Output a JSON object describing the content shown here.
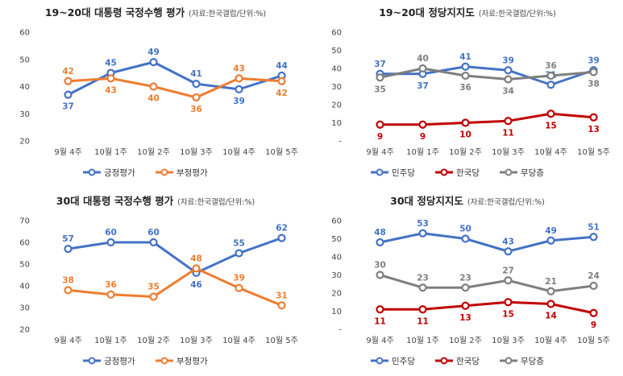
{
  "chart_data": [
    {
      "type": "line",
      "title": "19~20대 대통령 국정수행 평가",
      "note": "(자료:한국갤럽/단위:%)",
      "categories": [
        "9월 4주",
        "10월 1주",
        "10월 2주",
        "10월 3주",
        "10월 4주",
        "10월 5주"
      ],
      "yticks": [
        "20",
        "30",
        "40",
        "50",
        "60"
      ],
      "ylim": [
        20,
        60
      ],
      "series": [
        {
          "name": "긍정평가",
          "color": "#4472C4",
          "values": [
            37,
            45,
            49,
            41,
            39,
            44
          ],
          "label_pos": [
            "below",
            "above",
            "above",
            "above",
            "below",
            "above"
          ]
        },
        {
          "name": "부정평가",
          "color": "#ED7D31",
          "values": [
            42,
            43,
            40,
            36,
            43,
            42
          ],
          "label_pos": [
            "above",
            "below",
            "below",
            "below",
            "above",
            "below"
          ]
        }
      ],
      "legend_position": "bottom"
    },
    {
      "type": "line",
      "title": "19~20대 정당지지도",
      "note": "(자료:한국갤럽/단위:%)",
      "categories": [
        "9월 4주",
        "10월 1주",
        "10월 2주",
        "10월 3주",
        "10월 4주",
        "10월 5주"
      ],
      "yticks": [
        "-",
        "10",
        "20",
        "30",
        "40",
        "50",
        "60"
      ],
      "ylim": [
        0,
        60
      ],
      "series": [
        {
          "name": "민주당",
          "color": "#4472C4",
          "values": [
            37,
            37,
            41,
            39,
            31,
            39
          ],
          "label_pos": [
            "above",
            "below",
            "above",
            "above",
            "above",
            "above"
          ]
        },
        {
          "name": "한국당",
          "color": "#C00000",
          "values": [
            9,
            9,
            10,
            11,
            15,
            13
          ],
          "label_pos": [
            "below",
            "below",
            "below",
            "below",
            "below",
            "below"
          ]
        },
        {
          "name": "무당층",
          "color": "#7F7F7F",
          "values": [
            35,
            40,
            36,
            34,
            36,
            38
          ],
          "label_pos": [
            "below",
            "above",
            "below",
            "below",
            "above",
            "below"
          ]
        }
      ],
      "legend_position": "bottom"
    },
    {
      "type": "line",
      "title": "30대 대통령 국정수행 평가",
      "note": "(자료:한국갤럽/단위:%)",
      "categories": [
        "9월 4주",
        "10월 1주",
        "10월 2주",
        "10월 3주",
        "10월 4주",
        "10월 5주"
      ],
      "yticks": [
        "20",
        "30",
        "40",
        "50",
        "60",
        "70"
      ],
      "ylim": [
        20,
        70
      ],
      "series": [
        {
          "name": "긍정평가",
          "color": "#4472C4",
          "values": [
            57,
            60,
            60,
            46,
            55,
            62
          ],
          "label_pos": [
            "above",
            "above",
            "above",
            "below",
            "above",
            "above"
          ]
        },
        {
          "name": "부정평가",
          "color": "#ED7D31",
          "values": [
            38,
            36,
            35,
            48,
            39,
            31
          ],
          "label_pos": [
            "above",
            "above",
            "above",
            "above",
            "above",
            "above"
          ]
        }
      ],
      "legend_position": "bottom"
    },
    {
      "type": "line",
      "title": "30대 정당지지도",
      "note": "(자료:한국갤럽/단위:%)",
      "categories": [
        "9월 4주",
        "10월 1주",
        "10월 2주",
        "10월 3주",
        "10월 4주",
        "10월 5주"
      ],
      "yticks": [
        "-",
        "10",
        "20",
        "30",
        "40",
        "50",
        "60"
      ],
      "ylim": [
        0,
        60
      ],
      "series": [
        {
          "name": "민주당",
          "color": "#4472C4",
          "values": [
            48,
            53,
            50,
            43,
            49,
            51
          ],
          "label_pos": [
            "above",
            "above",
            "above",
            "above",
            "above",
            "above"
          ]
        },
        {
          "name": "한국당",
          "color": "#C00000",
          "values": [
            11,
            11,
            13,
            15,
            14,
            9
          ],
          "label_pos": [
            "below",
            "below",
            "below",
            "below",
            "below",
            "below"
          ]
        },
        {
          "name": "무당층",
          "color": "#7F7F7F",
          "values": [
            30,
            23,
            23,
            27,
            21,
            24
          ],
          "label_pos": [
            "above",
            "above",
            "above",
            "above",
            "above",
            "above"
          ]
        }
      ],
      "legend_position": "bottom"
    }
  ]
}
